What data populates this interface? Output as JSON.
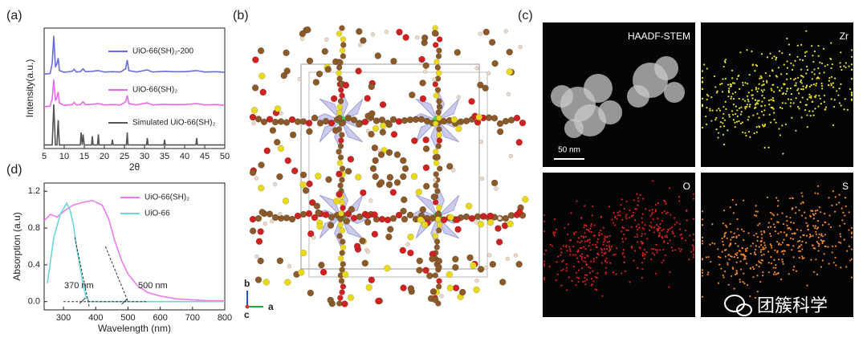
{
  "chart_data": [
    {
      "type": "line",
      "panel": "(a)",
      "xlabel": "2θ",
      "ylabel": "Intensity(a.u.)",
      "xlim": [
        5,
        50
      ],
      "xticks": [
        5,
        10,
        15,
        20,
        25,
        30,
        35,
        40,
        45,
        50
      ],
      "ylim": [
        0,
        3.4
      ],
      "series": [
        {
          "name": "UiO-66(SH)₂-200",
          "color": "#6b6be0",
          "x": [
            5,
            6.5,
            7.0,
            7.4,
            7.8,
            8.2,
            8.5,
            8.8,
            10,
            12,
            12.5,
            13,
            14,
            14.7,
            15.3,
            17,
            18.5,
            20,
            22,
            24,
            25.3,
            25.7,
            26.1,
            28,
            30.7,
            32,
            35,
            37,
            40,
            43,
            45,
            48,
            50
          ],
          "values": [
            2.1,
            2.12,
            2.4,
            3.18,
            2.3,
            2.4,
            2.55,
            2.2,
            2.15,
            2.18,
            2.24,
            2.16,
            2.17,
            2.25,
            2.17,
            2.18,
            2.2,
            2.16,
            2.17,
            2.16,
            2.25,
            2.5,
            2.2,
            2.16,
            2.22,
            2.16,
            2.18,
            2.17,
            2.17,
            2.2,
            2.16,
            2.17,
            2.15
          ]
        },
        {
          "name": "UiO-66(SH)₂",
          "color": "#e86ae8",
          "x": [
            5,
            6.5,
            7.0,
            7.4,
            7.8,
            8.2,
            8.5,
            8.8,
            10,
            12,
            12.5,
            13,
            14,
            14.7,
            15.3,
            17,
            18.5,
            20,
            22,
            24,
            25.3,
            25.7,
            26.1,
            28,
            30.7,
            32,
            35,
            37,
            40,
            43,
            45,
            48,
            50
          ],
          "values": [
            1.18,
            1.2,
            1.4,
            1.95,
            1.35,
            1.45,
            1.6,
            1.28,
            1.22,
            1.24,
            1.3,
            1.23,
            1.24,
            1.32,
            1.24,
            1.25,
            1.27,
            1.23,
            1.24,
            1.23,
            1.32,
            1.5,
            1.27,
            1.23,
            1.29,
            1.23,
            1.25,
            1.24,
            1.24,
            1.27,
            1.23,
            1.24,
            1.22
          ]
        },
        {
          "name": "Simulated UiO-66(SH)₂",
          "color": "#555555",
          "x": [
            5,
            7.0,
            7.4,
            7.8,
            8.2,
            8.5,
            8.8,
            12,
            14,
            14.2,
            14.5,
            14.7,
            15,
            16.8,
            17,
            17.2,
            18.3,
            18.5,
            18.7,
            21.8,
            22,
            22.2,
            25.5,
            25.7,
            25.9,
            30.5,
            30.7,
            30.9,
            34.8,
            35,
            35.2,
            42.8,
            43,
            43.2,
            50
          ],
          "values": [
            0.1,
            0.1,
            1.25,
            0.1,
            0.1,
            0.8,
            0.1,
            0.1,
            0.1,
            0.45,
            0.1,
            0.4,
            0.1,
            0.1,
            0.35,
            0.1,
            0.1,
            0.4,
            0.1,
            0.1,
            0.25,
            0.1,
            0.1,
            0.45,
            0.1,
            0.1,
            0.3,
            0.1,
            0.1,
            0.25,
            0.1,
            0.1,
            0.3,
            0.1,
            0.1
          ]
        }
      ]
    },
    {
      "type": "line",
      "panel": "(d)",
      "xlabel": "Wavelength (nm)",
      "ylabel": "Absorption (a.u)",
      "xlim": [
        240,
        800
      ],
      "xticks": [
        300,
        400,
        500,
        600,
        700,
        800
      ],
      "ylim": [
        -0.09,
        1.29
      ],
      "yticks": [
        {
          "value": 0,
          "label": "0.0"
        },
        {
          "value": 0.4,
          "label": "0.4"
        },
        {
          "value": 0.8,
          "label": "0.8"
        },
        {
          "value": 1.2,
          "label": "1.2"
        }
      ],
      "legend": "upper right",
      "annotations": [
        "370 nm",
        "500 nm"
      ],
      "series": [
        {
          "name": "UiO-66(SH)₂",
          "color": "#ee7aee",
          "x": [
            240,
            260,
            280,
            300,
            330,
            360,
            390,
            420,
            440,
            460,
            480,
            500,
            530,
            560,
            600,
            650,
            700,
            750,
            800
          ],
          "values": [
            0.88,
            0.95,
            0.92,
            0.98,
            1.05,
            1.08,
            1.1,
            1.05,
            0.9,
            0.65,
            0.45,
            0.3,
            0.17,
            0.1,
            0.06,
            0.03,
            0.02,
            0.01,
            0.01
          ]
        },
        {
          "name": "UiO-66",
          "color": "#6dd6d6",
          "x": [
            250,
            270,
            290,
            310,
            320,
            330,
            340,
            350,
            360,
            370,
            380,
            400,
            500,
            600,
            800
          ],
          "values": [
            0.2,
            0.7,
            0.95,
            1.07,
            1.0,
            0.85,
            0.6,
            0.4,
            0.2,
            0.05,
            0.0,
            0.0,
            0.0,
            0.0,
            0.0
          ]
        }
      ]
    }
  ],
  "structure": {
    "panel": "(b)",
    "axes": [
      "b",
      "c",
      "a"
    ]
  },
  "maps": {
    "panel": "(c)",
    "images": [
      {
        "label": "HAADF-STEM",
        "scale_bar": "50 nm"
      },
      {
        "label": "Zr"
      },
      {
        "label": "O"
      },
      {
        "label": "S"
      }
    ]
  },
  "watermark": "团簇科学"
}
